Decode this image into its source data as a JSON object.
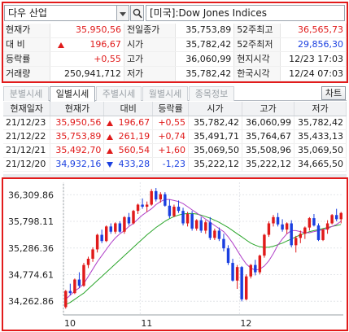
{
  "search": {
    "symbol": "다우 산업",
    "index_name": "[미국]:Dow Jones Indices"
  },
  "quote": {
    "rows": [
      [
        {
          "label": "현재가",
          "value": "35,950,56",
          "cls": "up"
        },
        {
          "label": "전일종가",
          "value": "35,753,89",
          "cls": ""
        },
        {
          "label": "52주최고",
          "value": "36,565,73",
          "cls": "up"
        }
      ],
      [
        {
          "label": "대 비",
          "value": "196,67",
          "cls": "up",
          "arrow": "up"
        },
        {
          "label": "시가",
          "value": "35,782,42",
          "cls": ""
        },
        {
          "label": "52주최저",
          "value": "29,856,30",
          "cls": "dn"
        }
      ],
      [
        {
          "label": "등락률",
          "value": "+0,55",
          "cls": "up"
        },
        {
          "label": "고가",
          "value": "36,060,99",
          "cls": ""
        },
        {
          "label": "현지시각",
          "value": "12/23 17:03",
          "cls": ""
        }
      ],
      [
        {
          "label": "거래량",
          "value": "250,941,712",
          "cls": ""
        },
        {
          "label": "저가",
          "value": "35,782,42",
          "cls": ""
        },
        {
          "label": "한국시각",
          "value": "12/24 07:03",
          "cls": ""
        }
      ]
    ]
  },
  "tabs": [
    "분별시세",
    "일별시세",
    "주별시세",
    "월별시세",
    "종목정보"
  ],
  "active_tab": 1,
  "chart_button": "차트",
  "daily": {
    "headers": [
      "현재일자",
      "현재가",
      "대비",
      "등락률",
      "시가",
      "고가",
      "저가"
    ],
    "rows": [
      {
        "date": "21/12/23",
        "price": "35,950,56",
        "change": "196,67",
        "rate": "+0,55",
        "open": "35,782,42",
        "high": "36,060,99",
        "low": "35,782,42",
        "dir": "up"
      },
      {
        "date": "21/12/22",
        "price": "35,753,89",
        "change": "261,19",
        "rate": "+0,74",
        "open": "35,491,71",
        "high": "35,764,67",
        "low": "35,433,13",
        "dir": "up"
      },
      {
        "date": "21/12/21",
        "price": "35,492,70",
        "change": "560,54",
        "rate": "+1,60",
        "open": "35,069,50",
        "high": "35,508,96",
        "low": "35,069,50",
        "dir": "up"
      },
      {
        "date": "21/12/20",
        "price": "34,932,16",
        "change": "433,28",
        "rate": "-1,23",
        "open": "35,222,12",
        "high": "35,222,12",
        "low": "34,665,50",
        "dir": "dn"
      }
    ]
  },
  "chart_data": {
    "type": "candlestick",
    "y_ticks": [
      "36,309.86",
      "35,798.11",
      "35,286.36",
      "34,774.61",
      "34,262.86"
    ],
    "y_tick_values": [
      36309.86,
      35798.11,
      35286.36,
      34774.61,
      34262.86
    ],
    "ylim": [
      34000,
      36550
    ],
    "x_labels": [
      {
        "label": "10",
        "index": 0
      },
      {
        "label": "11",
        "index": 17
      },
      {
        "label": "12",
        "index": 39
      }
    ],
    "up_color": "#e01a1a",
    "down_color": "#1a3fe0",
    "ma_colors": [
      "#b040c8",
      "#2aa52a"
    ],
    "candles": [
      [
        34150,
        34480,
        34120,
        34460
      ],
      [
        34460,
        34600,
        34380,
        34420
      ],
      [
        34420,
        34700,
        34400,
        34680
      ],
      [
        34680,
        34820,
        34520,
        34560
      ],
      [
        34560,
        35000,
        34540,
        34960
      ],
      [
        34960,
        35120,
        34900,
        35080
      ],
      [
        35080,
        35300,
        35020,
        35260
      ],
      [
        35260,
        35560,
        35200,
        35540
      ],
      [
        35540,
        35640,
        35380,
        35420
      ],
      [
        35420,
        35720,
        35400,
        35700
      ],
      [
        35700,
        35760,
        35560,
        35600
      ],
      [
        35600,
        35780,
        35560,
        35760
      ],
      [
        35760,
        35800,
        35580,
        35600
      ],
      [
        35600,
        35900,
        35560,
        35880
      ],
      [
        35880,
        35960,
        35720,
        35760
      ],
      [
        35760,
        36020,
        35740,
        36000
      ],
      [
        36000,
        36140,
        35940,
        36120
      ],
      [
        36120,
        36240,
        36040,
        36080
      ],
      [
        36080,
        36180,
        35980,
        36120
      ],
      [
        36120,
        36420,
        36100,
        36380
      ],
      [
        36380,
        36440,
        36180,
        36220
      ],
      [
        36220,
        36360,
        36160,
        36320
      ],
      [
        36320,
        36360,
        36080,
        36100
      ],
      [
        36100,
        36220,
        35860,
        35900
      ],
      [
        35900,
        36120,
        35880,
        36080
      ],
      [
        36080,
        36200,
        35960,
        36000
      ],
      [
        36000,
        36060,
        35720,
        35760
      ],
      [
        35760,
        35980,
        35700,
        35940
      ],
      [
        35940,
        36000,
        35620,
        35660
      ],
      [
        35660,
        35840,
        35620,
        35820
      ],
      [
        35820,
        35880,
        35580,
        35620
      ],
      [
        35620,
        35820,
        35560,
        35780
      ],
      [
        35780,
        35880,
        35440,
        35480
      ],
      [
        35480,
        35660,
        35440,
        35620
      ],
      [
        35620,
        35680,
        35420,
        35460
      ],
      [
        35460,
        35560,
        35220,
        35280
      ],
      [
        35280,
        35340,
        34960,
        35000
      ],
      [
        35000,
        35080,
        34640,
        34660
      ],
      [
        34660,
        34960,
        34500,
        34920
      ],
      [
        34920,
        34940,
        34260,
        34300
      ],
      [
        34300,
        34780,
        34280,
        34740
      ],
      [
        34740,
        34980,
        34700,
        34960
      ],
      [
        34960,
        35060,
        34760,
        34820
      ],
      [
        34820,
        35160,
        34780,
        35140
      ],
      [
        35140,
        35560,
        35100,
        35540
      ],
      [
        35540,
        35800,
        35500,
        35760
      ],
      [
        35760,
        35920,
        35700,
        35880
      ],
      [
        35880,
        35960,
        35700,
        35740
      ],
      [
        35740,
        35840,
        35600,
        35640
      ],
      [
        35640,
        35780,
        35560,
        35760
      ],
      [
        35760,
        35820,
        35300,
        35340
      ],
      [
        35340,
        35520,
        35200,
        35480
      ],
      [
        35480,
        35620,
        35380,
        35560
      ],
      [
        35560,
        35700,
        35460,
        35680
      ],
      [
        35680,
        35880,
        35620,
        35860
      ],
      [
        35860,
        35940,
        35700,
        35720
      ],
      [
        35720,
        35760,
        35420,
        35440
      ],
      [
        35440,
        35660,
        35420,
        35640
      ],
      [
        35640,
        35820,
        35560,
        35760
      ],
      [
        35760,
        35940,
        35740,
        35920
      ],
      [
        35920,
        36040,
        35800,
        35840
      ],
      [
        35840,
        35980,
        35760,
        35960
      ]
    ],
    "ma_short": [
      34300,
      34380,
      34460,
      34520,
      34600,
      34740,
      34880,
      35020,
      35140,
      35260,
      35380,
      35480,
      35560,
      35620,
      35700,
      35760,
      35840,
      35920,
      35980,
      36040,
      36120,
      36180,
      36220,
      36220,
      36200,
      36180,
      36140,
      36080,
      36020,
      35960,
      35900,
      35840,
      35780,
      35720,
      35660,
      35600,
      35500,
      35380,
      35240,
      35100,
      34980,
      34900,
      34860,
      34880,
      34940,
      35040,
      35180,
      35340,
      35460,
      35560,
      35620,
      35620,
      35600,
      35580,
      35580,
      35600,
      35620,
      35640,
      35660,
      35700,
      35740,
      35800
    ],
    "ma_long": [
      34200,
      34240,
      34300,
      34360,
      34420,
      34500,
      34580,
      34660,
      34740,
      34820,
      34900,
      34980,
      35060,
      35140,
      35220,
      35300,
      35380,
      35460,
      35540,
      35610,
      35680,
      35740,
      35800,
      35850,
      35890,
      35920,
      35940,
      35950,
      35950,
      35940,
      35920,
      35890,
      35860,
      35820,
      35780,
      35730,
      35680,
      35620,
      35560,
      35500,
      35440,
      35380,
      35340,
      35310,
      35300,
      35300,
      35320,
      35350,
      35380,
      35420,
      35460,
      35500,
      35540,
      35570,
      35600,
      35620,
      35640,
      35660,
      35680,
      35700,
      35720,
      35740
    ]
  }
}
